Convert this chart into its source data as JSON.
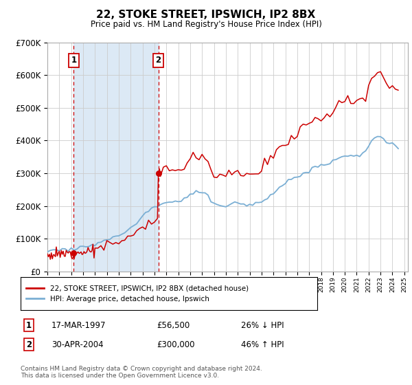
{
  "title": "22, STOKE STREET, IPSWICH, IP2 8BX",
  "subtitle": "Price paid vs. HM Land Registry's House Price Index (HPI)",
  "sale1_date": "17-MAR-1997",
  "sale1_price": 56500,
  "sale1_label": "1",
  "sale1_year": 1997.21,
  "sale2_date": "30-APR-2004",
  "sale2_price": 300000,
  "sale2_label": "2",
  "sale2_year": 2004.33,
  "legend_property": "22, STOKE STREET, IPSWICH, IP2 8BX (detached house)",
  "legend_hpi": "HPI: Average price, detached house, Ipswich",
  "table_row1": [
    "1",
    "17-MAR-1997",
    "£56,500",
    "26% ↓ HPI"
  ],
  "table_row2": [
    "2",
    "30-APR-2004",
    "£300,000",
    "46% ↑ HPI"
  ],
  "footer": "Contains HM Land Registry data © Crown copyright and database right 2024.\nThis data is licensed under the Open Government Licence v3.0.",
  "line_color_property": "#cc0000",
  "line_color_hpi": "#7bafd4",
  "shade_color": "#dce9f5",
  "ylim": [
    0,
    700000
  ],
  "xlim_start": 1995.0,
  "xlim_end": 2025.3,
  "hpi_years": [
    1995.0,
    1995.25,
    1995.5,
    1995.75,
    1996.0,
    1996.25,
    1996.5,
    1996.75,
    1997.0,
    1997.25,
    1997.5,
    1997.75,
    1998.0,
    1998.25,
    1998.5,
    1998.75,
    1999.0,
    1999.25,
    1999.5,
    1999.75,
    2000.0,
    2000.25,
    2000.5,
    2000.75,
    2001.0,
    2001.25,
    2001.5,
    2001.75,
    2002.0,
    2002.25,
    2002.5,
    2002.75,
    2003.0,
    2003.25,
    2003.5,
    2003.75,
    2004.0,
    2004.25,
    2004.5,
    2004.75,
    2005.0,
    2005.25,
    2005.5,
    2005.75,
    2006.0,
    2006.25,
    2006.5,
    2006.75,
    2007.0,
    2007.25,
    2007.5,
    2007.75,
    2008.0,
    2008.25,
    2008.5,
    2008.75,
    2009.0,
    2009.25,
    2009.5,
    2009.75,
    2010.0,
    2010.25,
    2010.5,
    2010.75,
    2011.0,
    2011.25,
    2011.5,
    2011.75,
    2012.0,
    2012.25,
    2012.5,
    2012.75,
    2013.0,
    2013.25,
    2013.5,
    2013.75,
    2014.0,
    2014.25,
    2014.5,
    2014.75,
    2015.0,
    2015.25,
    2015.5,
    2015.75,
    2016.0,
    2016.25,
    2016.5,
    2016.75,
    2017.0,
    2017.25,
    2017.5,
    2017.75,
    2018.0,
    2018.25,
    2018.5,
    2018.75,
    2019.0,
    2019.25,
    2019.5,
    2019.75,
    2020.0,
    2020.25,
    2020.5,
    2020.75,
    2021.0,
    2021.25,
    2021.5,
    2021.75,
    2022.0,
    2022.25,
    2022.5,
    2022.75,
    2023.0,
    2023.25,
    2023.5,
    2023.75,
    2024.0,
    2024.25,
    2024.5
  ],
  "hpi_values": [
    63000,
    63500,
    64000,
    65000,
    66000,
    67000,
    68000,
    69000,
    70000,
    71000,
    72000,
    73500,
    75000,
    77000,
    79000,
    81000,
    84000,
    87000,
    90000,
    93000,
    97000,
    101000,
    105000,
    109000,
    113000,
    117000,
    121000,
    126000,
    132000,
    140000,
    149000,
    159000,
    168000,
    177000,
    186000,
    193000,
    199000,
    204000,
    208000,
    210000,
    212000,
    213000,
    213500,
    214000,
    216000,
    219000,
    223000,
    228000,
    234000,
    239000,
    243000,
    245000,
    244000,
    238000,
    228000,
    215000,
    204000,
    200000,
    199000,
    200000,
    204000,
    207000,
    210000,
    211000,
    210000,
    208000,
    206000,
    205000,
    204000,
    205000,
    207000,
    210000,
    214000,
    220000,
    227000,
    234000,
    240000,
    247000,
    254000,
    261000,
    267000,
    273000,
    279000,
    284000,
    289000,
    294000,
    300000,
    306000,
    311000,
    316000,
    320000,
    322000,
    323000,
    325000,
    328000,
    332000,
    337000,
    343000,
    348000,
    352000,
    355000,
    357000,
    357000,
    355000,
    353000,
    355000,
    360000,
    370000,
    385000,
    400000,
    408000,
    412000,
    410000,
    405000,
    398000,
    393000,
    388000,
    385000,
    382000
  ],
  "red_years": [
    1995.0,
    1995.08,
    1995.17,
    1995.25,
    1995.33,
    1995.42,
    1995.5,
    1995.58,
    1995.67,
    1995.75,
    1995.83,
    1995.92,
    1996.0,
    1996.08,
    1996.17,
    1996.25,
    1996.33,
    1996.42,
    1996.5,
    1996.58,
    1996.67,
    1996.75,
    1996.83,
    1996.92,
    1997.0,
    1997.08,
    1997.17,
    1997.21,
    1997.25,
    1997.33,
    1997.42,
    1997.5,
    1997.58,
    1997.67,
    1997.75,
    1997.83,
    1997.92,
    1998.0,
    1998.08,
    1998.17,
    1998.25,
    1998.33,
    1998.42,
    1998.5,
    1998.58,
    1998.67,
    1998.75,
    1998.83,
    1998.92,
    1999.0,
    1999.25,
    1999.5,
    1999.75,
    2000.0,
    2000.25,
    2000.5,
    2000.75,
    2001.0,
    2001.25,
    2001.5,
    2001.75,
    2002.0,
    2002.25,
    2002.5,
    2002.75,
    2003.0,
    2003.25,
    2003.5,
    2003.75,
    2004.0,
    2004.25,
    2004.33,
    2004.42,
    2004.5,
    2004.75,
    2005.0,
    2005.25,
    2005.5,
    2005.75,
    2006.0,
    2006.25,
    2006.5,
    2006.75,
    2007.0,
    2007.25,
    2007.5,
    2007.75,
    2008.0,
    2008.25,
    2008.5,
    2008.75,
    2009.0,
    2009.25,
    2009.5,
    2009.75,
    2010.0,
    2010.25,
    2010.5,
    2010.75,
    2011.0,
    2011.25,
    2011.5,
    2011.75,
    2012.0,
    2012.25,
    2012.5,
    2012.75,
    2013.0,
    2013.25,
    2013.5,
    2013.75,
    2014.0,
    2014.25,
    2014.5,
    2014.75,
    2015.0,
    2015.25,
    2015.5,
    2015.75,
    2016.0,
    2016.25,
    2016.5,
    2016.75,
    2017.0,
    2017.25,
    2017.5,
    2017.75,
    2018.0,
    2018.25,
    2018.5,
    2018.75,
    2019.0,
    2019.25,
    2019.5,
    2019.75,
    2020.0,
    2020.25,
    2020.5,
    2020.75,
    2021.0,
    2021.25,
    2021.5,
    2021.75,
    2022.0,
    2022.25,
    2022.5,
    2022.75,
    2023.0,
    2023.25,
    2023.5,
    2023.75,
    2024.0,
    2024.25,
    2024.5
  ]
}
